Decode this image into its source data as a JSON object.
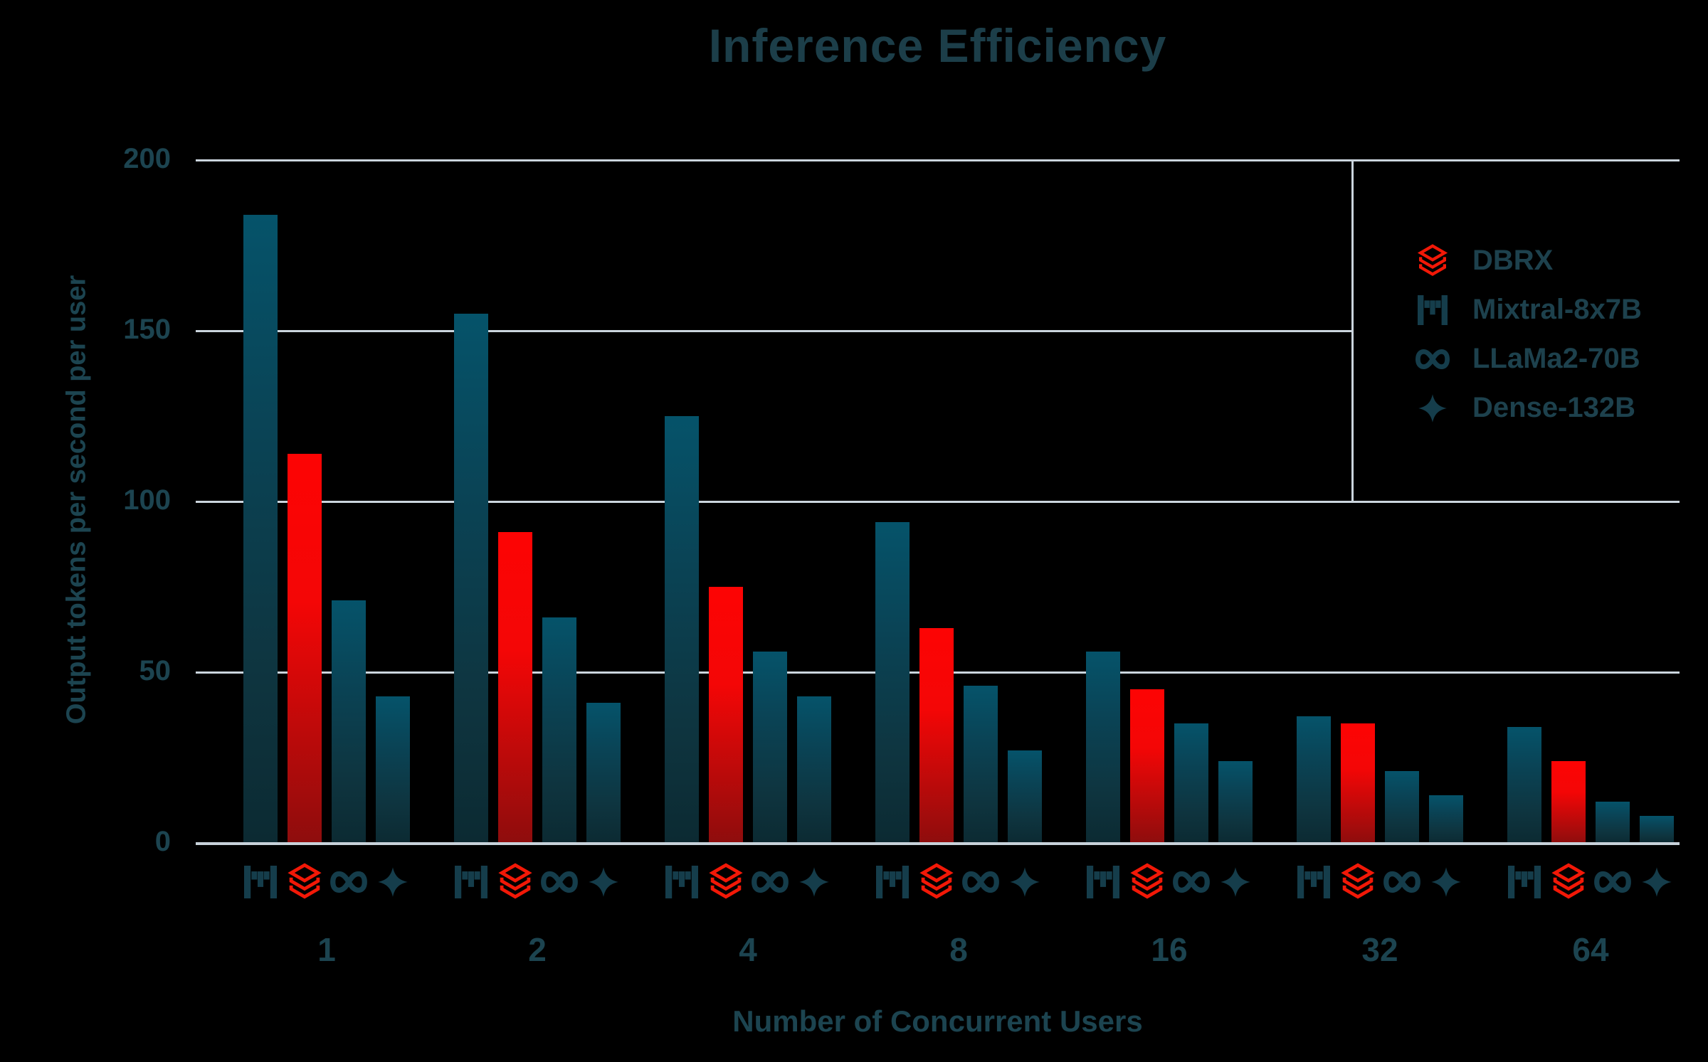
{
  "chart_data": {
    "type": "bar",
    "title": "Inference Efficiency",
    "xlabel": "Number of Concurrent Users",
    "ylabel": "Output tokens per second per user",
    "categories": [
      "1",
      "2",
      "4",
      "8",
      "16",
      "32",
      "64"
    ],
    "yticks": [
      0,
      50,
      100,
      150,
      200
    ],
    "ylim": [
      0,
      200
    ],
    "grid": "horizontal-only",
    "legend_position": "upper-right-inside",
    "bar_order_in_group": [
      "Mixtral-8x7B",
      "DBRX",
      "LLaMa2-70B",
      "Dense-132B"
    ],
    "series": [
      {
        "name": "DBRX",
        "icon": "databricks-icon",
        "color": "red-gradient",
        "values": [
          114,
          91,
          75,
          63,
          45,
          35,
          24
        ]
      },
      {
        "name": "Mixtral-8x7B",
        "icon": "mistral-m-icon",
        "color": "teal-gradient",
        "values": [
          184,
          155,
          125,
          94,
          56,
          37,
          34
        ]
      },
      {
        "name": "LLaMa2-70B",
        "icon": "meta-infinity-icon",
        "color": "teal-gradient",
        "values": [
          71,
          66,
          56,
          46,
          35,
          21,
          12
        ]
      },
      {
        "name": "Dense-132B",
        "icon": "sparkle-star-icon",
        "color": "teal-gradient",
        "values": [
          43,
          41,
          43,
          27,
          24,
          14,
          8
        ]
      }
    ]
  },
  "colors": {
    "background": "#000000",
    "text": "#1c4450",
    "gridline": "#cbd5dd",
    "teal_bar_top": "#05536a",
    "teal_bar_bottom": "#0c2a32",
    "red_bar_top": "#fd0404",
    "red_bar_bottom": "#8e0d0d",
    "databricks_red": "#f21807",
    "icon_teal": "#153d4b"
  }
}
